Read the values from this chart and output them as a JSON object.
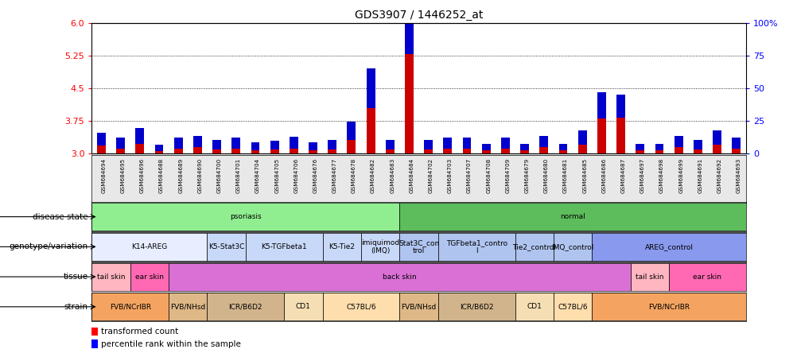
{
  "title": "GDS3907 / 1446252_at",
  "samples": [
    "GSM684694",
    "GSM684695",
    "GSM684696",
    "GSM684688",
    "GSM684689",
    "GSM684690",
    "GSM684700",
    "GSM684701",
    "GSM684704",
    "GSM684705",
    "GSM684706",
    "GSM684676",
    "GSM684677",
    "GSM684678",
    "GSM684682",
    "GSM684683",
    "GSM684684",
    "GSM684702",
    "GSM684703",
    "GSM684707",
    "GSM684708",
    "GSM684709",
    "GSM684679",
    "GSM684680",
    "GSM684681",
    "GSM684685",
    "GSM684686",
    "GSM684687",
    "GSM684697",
    "GSM684698",
    "GSM684699",
    "GSM684691",
    "GSM684692",
    "GSM684693"
  ],
  "red_values": [
    3.18,
    3.12,
    3.22,
    3.05,
    3.12,
    3.14,
    3.1,
    3.12,
    3.08,
    3.09,
    3.12,
    3.08,
    3.1,
    3.32,
    4.05,
    3.1,
    5.28,
    3.1,
    3.12,
    3.12,
    3.08,
    3.12,
    3.08,
    3.14,
    3.08,
    3.2,
    3.8,
    3.82,
    3.08,
    3.08,
    3.14,
    3.1,
    3.2,
    3.12
  ],
  "blue_values": [
    10,
    8,
    12,
    5,
    8,
    9,
    7,
    8,
    6,
    7,
    9,
    6,
    7,
    14,
    30,
    7,
    27,
    7,
    8,
    8,
    5,
    8,
    5,
    9,
    5,
    11,
    20,
    18,
    5,
    5,
    9,
    7,
    11,
    8
  ],
  "ymin": 3.0,
  "ymax": 6.0,
  "yticks_left": [
    3.0,
    3.75,
    4.5,
    5.25,
    6.0
  ],
  "yticks_right": [
    0,
    25,
    50,
    75,
    100
  ],
  "disease_state": [
    {
      "label": "psoriasis",
      "start": 0,
      "end": 16,
      "color": "#90EE90"
    },
    {
      "label": "normal",
      "start": 16,
      "end": 34,
      "color": "#5DBD5D"
    }
  ],
  "genotype": [
    {
      "label": "K14-AREG",
      "start": 0,
      "end": 6,
      "color": "#E8EEFF"
    },
    {
      "label": "K5-Stat3C",
      "start": 6,
      "end": 8,
      "color": "#C8D8F8"
    },
    {
      "label": "K5-TGFbeta1",
      "start": 8,
      "end": 12,
      "color": "#C8D8F8"
    },
    {
      "label": "K5-Tie2",
      "start": 12,
      "end": 14,
      "color": "#C8D8F8"
    },
    {
      "label": "imiquimod\n(IMQ)",
      "start": 14,
      "end": 16,
      "color": "#C8D8F8"
    },
    {
      "label": "Stat3C_con\ntrol",
      "start": 16,
      "end": 18,
      "color": "#B0C4F0"
    },
    {
      "label": "TGFbeta1_contro\nl",
      "start": 18,
      "end": 22,
      "color": "#B0C4F0"
    },
    {
      "label": "Tie2_control",
      "start": 22,
      "end": 24,
      "color": "#B0C4F0"
    },
    {
      "label": "IMQ_control",
      "start": 24,
      "end": 26,
      "color": "#B0C4F0"
    },
    {
      "label": "AREG_control",
      "start": 26,
      "end": 34,
      "color": "#8899EE"
    }
  ],
  "tissue": [
    {
      "label": "tail skin",
      "start": 0,
      "end": 2,
      "color": "#FFB6C1"
    },
    {
      "label": "ear skin",
      "start": 2,
      "end": 4,
      "color": "#FF69B4"
    },
    {
      "label": "back skin",
      "start": 4,
      "end": 28,
      "color": "#DA70D6"
    },
    {
      "label": "tail skin",
      "start": 28,
      "end": 30,
      "color": "#FFB6C1"
    },
    {
      "label": "ear skin",
      "start": 30,
      "end": 34,
      "color": "#FF69B4"
    }
  ],
  "strain": [
    {
      "label": "FVB/NCrIBR",
      "start": 0,
      "end": 4,
      "color": "#F4A460"
    },
    {
      "label": "FVB/NHsd",
      "start": 4,
      "end": 6,
      "color": "#DEB887"
    },
    {
      "label": "ICR/B6D2",
      "start": 6,
      "end": 10,
      "color": "#D2B48C"
    },
    {
      "label": "CD1",
      "start": 10,
      "end": 12,
      "color": "#F5DEB3"
    },
    {
      "label": "C57BL/6",
      "start": 12,
      "end": 16,
      "color": "#FFDEAD"
    },
    {
      "label": "FVB/NHsd",
      "start": 16,
      "end": 18,
      "color": "#DEB887"
    },
    {
      "label": "ICR/B6D2",
      "start": 18,
      "end": 22,
      "color": "#D2B48C"
    },
    {
      "label": "CD1",
      "start": 22,
      "end": 24,
      "color": "#F5DEB3"
    },
    {
      "label": "C57BL/6",
      "start": 24,
      "end": 26,
      "color": "#FFDEAD"
    },
    {
      "label": "FVB/NCrIBR",
      "start": 26,
      "end": 34,
      "color": "#F4A460"
    }
  ],
  "bar_color_red": "#CC0000",
  "bar_color_blue": "#0000CC",
  "row_labels": [
    "disease state",
    "genotype/variation",
    "tissue",
    "strain"
  ],
  "xtick_bg": "#E8E8E8"
}
